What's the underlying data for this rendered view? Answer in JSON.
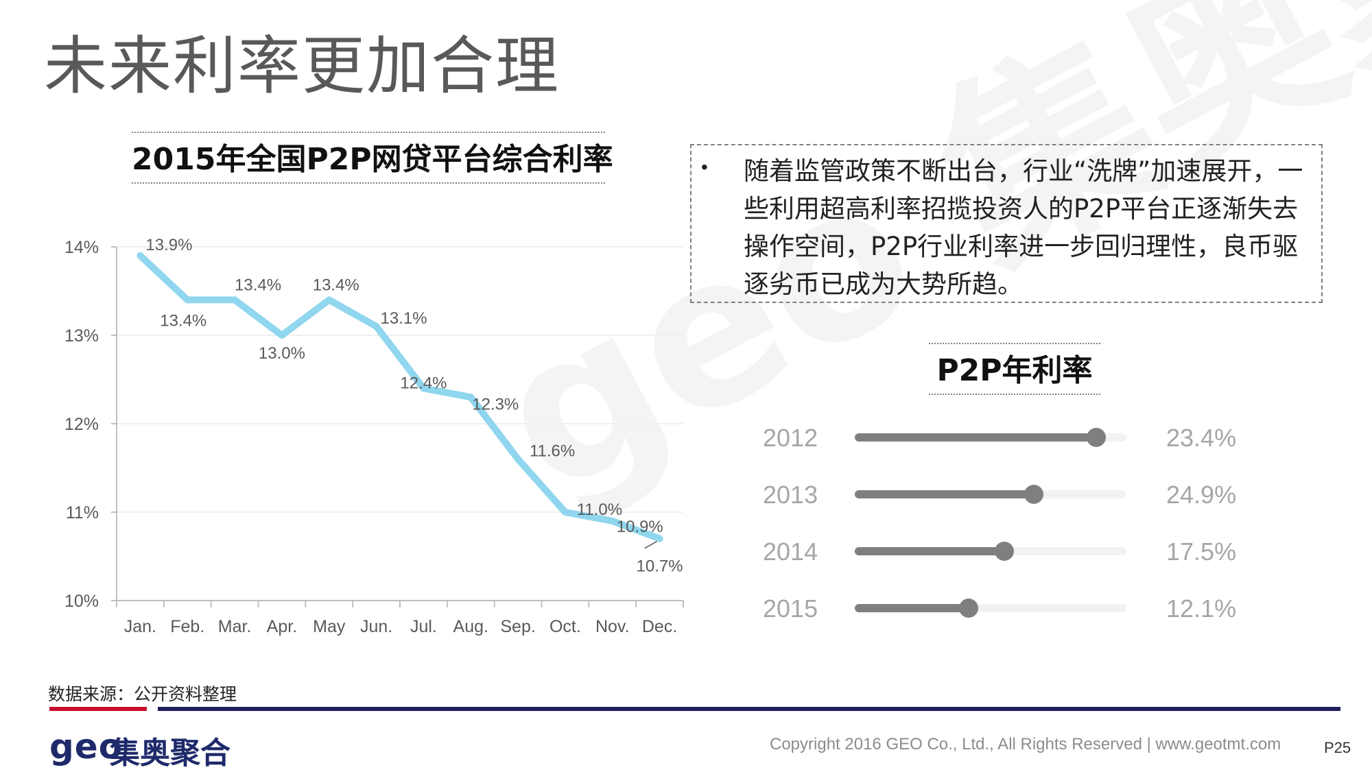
{
  "page": {
    "title": "未来利率更加合理"
  },
  "chart_data": {
    "type": "line",
    "title": "2015年全国P2P网贷平台综合利率",
    "categories": [
      "Jan.",
      "Feb.",
      "Mar.",
      "Apr.",
      "May",
      "Jun.",
      "Jul.",
      "Aug.",
      "Sep.",
      "Oct.",
      "Nov.",
      "Dec."
    ],
    "values": [
      13.9,
      13.4,
      13.4,
      13.0,
      13.4,
      13.1,
      12.4,
      12.3,
      11.6,
      11.0,
      10.9,
      10.7
    ],
    "data_labels": [
      "13.9%",
      "13.4%",
      "13.4%",
      "13.0%",
      "13.4%",
      "13.1%",
      "12.4%",
      "12.3%",
      "11.6%",
      "11.0%",
      "10.9%",
      "10.7%"
    ],
    "y_ticks": [
      "10%",
      "11%",
      "12%",
      "13%",
      "14%"
    ],
    "ylim": [
      10,
      14
    ],
    "line_color": "#8fd6ee",
    "grid": true,
    "legend": "none"
  },
  "note": {
    "bullet": "•",
    "text": "随着监管政策不断出台，行业“洗牌”加速展开，一些利用超高利率招揽投资人的P2P平台正逐渐失去操作空间，P2P行业利率进一步回归理性，良币驱逐劣币已成为大势所趋。"
  },
  "rates": {
    "title": "P2P年利率",
    "items": [
      {
        "year": "2012",
        "value": "23.4%",
        "level": 0.89
      },
      {
        "year": "2013",
        "value": "24.9%",
        "level": 0.66
      },
      {
        "year": "2014",
        "value": "17.5%",
        "level": 0.55
      },
      {
        "year": "2015",
        "value": "12.1%",
        "level": 0.42
      }
    ],
    "colors": {
      "fill": "#7f7f7f",
      "track": "#f2f2f2",
      "text": "#a6a6a6"
    }
  },
  "watermark": "geo 集奥聚合",
  "footer": {
    "source": "数据来源：公开资料整理",
    "logo_mark": "geo",
    "logo_name": "集奥聚合",
    "copyright": "Copyright 2016 GEO Co., Ltd., All Rights Reserved   |  www.geotmt.com",
    "page_number": "P25",
    "colors": {
      "accent_red": "#c8102e",
      "navy": "#1f1f5c"
    }
  }
}
